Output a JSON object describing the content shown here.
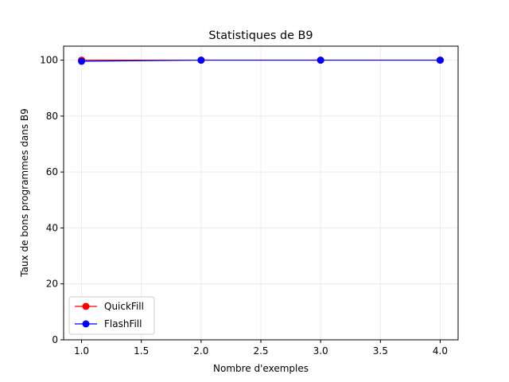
{
  "chart_data": {
    "type": "line",
    "title": "Statistiques de B9",
    "xlabel": "Nombre d'exemples",
    "ylabel": "Taux de bons programmes dans B9",
    "xlim": [
      0.85,
      4.15
    ],
    "ylim": [
      0,
      105
    ],
    "xticks": [
      "1.0",
      "1.5",
      "2.0",
      "2.5",
      "3.0",
      "3.5",
      "4.0"
    ],
    "yticks": [
      "0",
      "20",
      "40",
      "60",
      "80",
      "100"
    ],
    "grid": true,
    "legend_position": "lower-left",
    "series": [
      {
        "name": "QuickFill",
        "color": "#ff0000",
        "x": [
          1,
          2,
          3,
          4
        ],
        "y": [
          100,
          100,
          100,
          100
        ]
      },
      {
        "name": "FlashFill",
        "color": "#0000ff",
        "x": [
          1,
          2,
          3,
          4
        ],
        "y": [
          99.6,
          100,
          100,
          100
        ]
      }
    ]
  }
}
